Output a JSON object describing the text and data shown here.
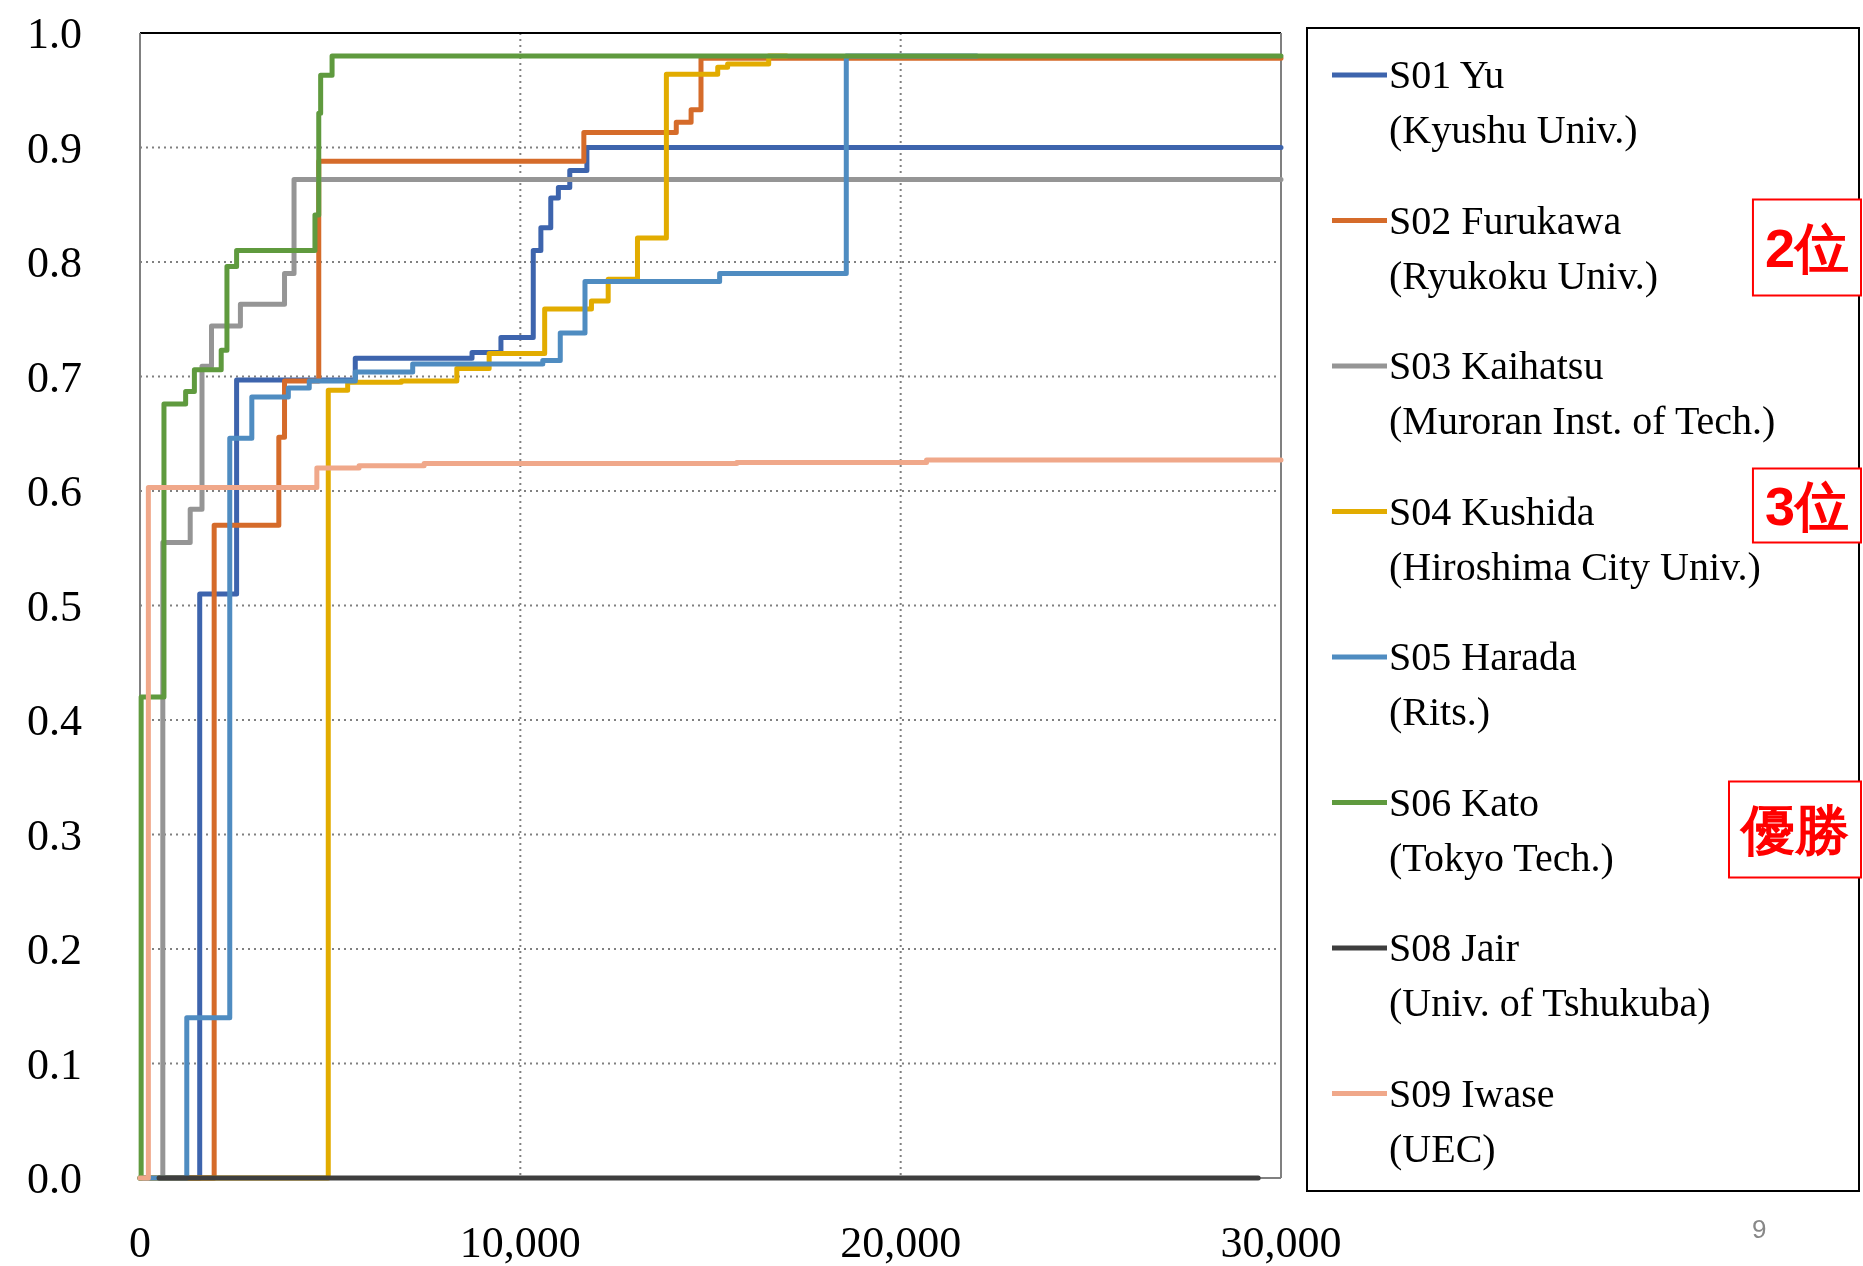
{
  "chart_data": {
    "type": "step",
    "xlim": [
      0,
      30000
    ],
    "ylim": [
      0,
      1
    ],
    "xticks": [
      0,
      {
        "value": 10000,
        "label": "10,000"
      },
      {
        "value": 20000,
        "label": "20,000"
      },
      {
        "value": 30000,
        "label": "30,000"
      }
    ],
    "yticks": [
      {
        "value": 0,
        "label": "0.0"
      },
      0.1,
      0.2,
      0.3,
      0.4,
      0.5,
      0.6,
      0.7,
      0.8,
      0.9,
      {
        "value": 1,
        "label": "1.0"
      }
    ],
    "grid": true,
    "legend": "right",
    "series": [
      {
        "name": "S01 Yu\n(Kyushu Univ.)",
        "color": "#3d64ad",
        "x": [
          0,
          1570,
          2540,
          5660,
          8730,
          9490,
          10340,
          10540,
          10800,
          11000,
          11300,
          11750,
          30000
        ],
        "values": [
          0,
          0.51,
          0.697,
          0.716,
          0.721,
          0.734,
          0.81,
          0.83,
          0.856,
          0.865,
          0.88,
          0.9,
          0.9
        ]
      },
      {
        "name": "S02 Furukawa\n(Ryukoku Univ.)",
        "color": "#d56b2a",
        "x": [
          0,
          1950,
          3650,
          3800,
          4700,
          11670,
          14100,
          14490,
          14750,
          30000
        ],
        "values": [
          0,
          0.57,
          0.647,
          0.696,
          0.888,
          0.913,
          0.922,
          0.933,
          0.978,
          0.978
        ]
      },
      {
        "name": "S03 Kaihatsu\n(Muroran Inst. of Tech.)",
        "color": "#959595",
        "x": [
          0,
          600,
          1320,
          1630,
          1880,
          2640,
          3800,
          4050,
          30000
        ],
        "values": [
          0,
          0.555,
          0.584,
          0.709,
          0.744,
          0.763,
          0.79,
          0.872,
          0.872
        ]
      },
      {
        "name": "S04 Kushida\n(Hiroshima City Univ.)",
        "color": "#e2ac00",
        "x": [
          0,
          4950,
          5460,
          6870,
          8330,
          9180,
          10640,
          11870,
          12310,
          13080,
          13840,
          15190,
          15450,
          16530,
          17000
        ],
        "values": [
          0,
          0.688,
          0.695,
          0.696,
          0.707,
          0.72,
          0.759,
          0.766,
          0.785,
          0.821,
          0.964,
          0.97,
          0.973,
          0.98,
          0.98
        ]
      },
      {
        "name": "S05 Harada\n(Rits.)",
        "color": "#4f8cc1",
        "x": [
          0,
          1230,
          2360,
          2940,
          3900,
          4450,
          5660,
          7170,
          10590,
          11050,
          11700,
          15240,
          18570,
          22000
        ],
        "values": [
          0,
          0.14,
          0.646,
          0.682,
          0.69,
          0.696,
          0.704,
          0.711,
          0.714,
          0.738,
          0.783,
          0.79,
          0.98,
          0.98
        ]
      },
      {
        "name": "S06 Kato\n(Tokyo Tech.)",
        "color": "#5f9a3e",
        "x": [
          0,
          30,
          630,
          1200,
          1430,
          2135,
          2286,
          2540,
          4600,
          4700,
          4750,
          5050,
          30000
        ],
        "values": [
          0,
          0.42,
          0.676,
          0.687,
          0.706,
          0.723,
          0.796,
          0.81,
          0.841,
          0.93,
          0.963,
          0.98,
          0.98
        ]
      },
      {
        "name": "S08 Jair\n(Univ. of Tshukuba)",
        "color": "#3e3e3e",
        "x": [
          500,
          29400
        ],
        "values": [
          0,
          0
        ]
      },
      {
        "name": "S09 Iwase\n(UEC)",
        "color": "#f0a88a",
        "x": [
          0,
          220,
          4650,
          5760,
          7470,
          15690,
          20680,
          30000
        ],
        "values": [
          0,
          0.603,
          0.62,
          0.622,
          0.624,
          0.625,
          0.627,
          0.627
        ]
      }
    ],
    "annotations": [
      "2位",
      "3位",
      "優勝",
      "9"
    ]
  }
}
